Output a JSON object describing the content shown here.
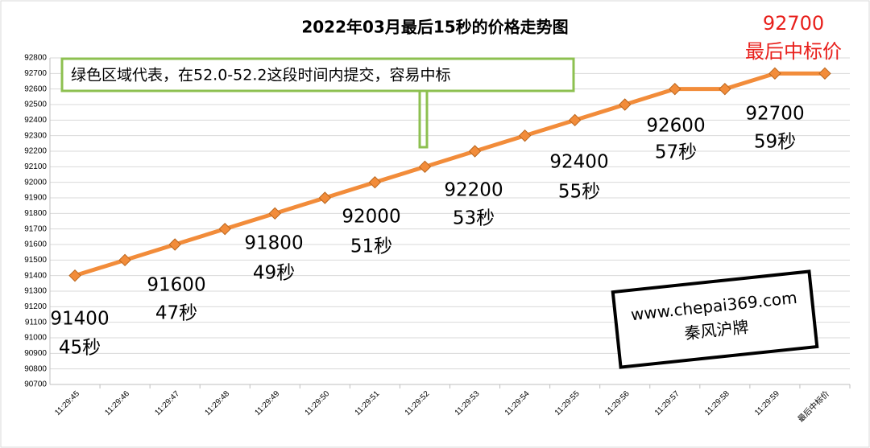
{
  "chart_data": {
    "type": "line",
    "title": "2022年03月最后15秒的价格走势图",
    "categories": [
      "11:29:45",
      "11:29:46",
      "11:29:47",
      "11:29:48",
      "11:29:49",
      "11:29:50",
      "11:29:51",
      "11:29:52",
      "11:29:53",
      "11:29:54",
      "11:29:55",
      "11:29:56",
      "11:29:57",
      "11:29:58",
      "11:29:59",
      "最后中标价"
    ],
    "series": [
      {
        "name": "价格",
        "color": "#f28c3a",
        "values": [
          91400,
          91500,
          91600,
          91700,
          91800,
          91900,
          92000,
          92100,
          92200,
          92300,
          92400,
          92500,
          92600,
          92600,
          92700,
          92700
        ]
      }
    ],
    "ylim": [
      90700,
      92800
    ],
    "yticks": [
      90700,
      90800,
      90900,
      91000,
      91100,
      91200,
      91300,
      91400,
      91500,
      91600,
      91700,
      91800,
      91900,
      92000,
      92100,
      92200,
      92300,
      92400,
      92500,
      92600,
      92700,
      92800
    ],
    "grid": true,
    "final_price": "92700",
    "final_label": "最后中标价",
    "note": "绿色区域代表，在52.0-52.2这段时间内提交，容易中标",
    "annotations": [
      {
        "price": "91400",
        "time": "45秒"
      },
      {
        "price": "91600",
        "time": "47秒"
      },
      {
        "price": "91800",
        "time": "49秒"
      },
      {
        "price": "92000",
        "time": "51秒"
      },
      {
        "price": "92200",
        "time": "53秒"
      },
      {
        "price": "92400",
        "time": "55秒"
      },
      {
        "price": "92600",
        "time": "57秒"
      },
      {
        "price": "92700",
        "time": "59秒"
      }
    ],
    "watermark": [
      "www.chepai369.com",
      "秦风沪牌"
    ]
  }
}
